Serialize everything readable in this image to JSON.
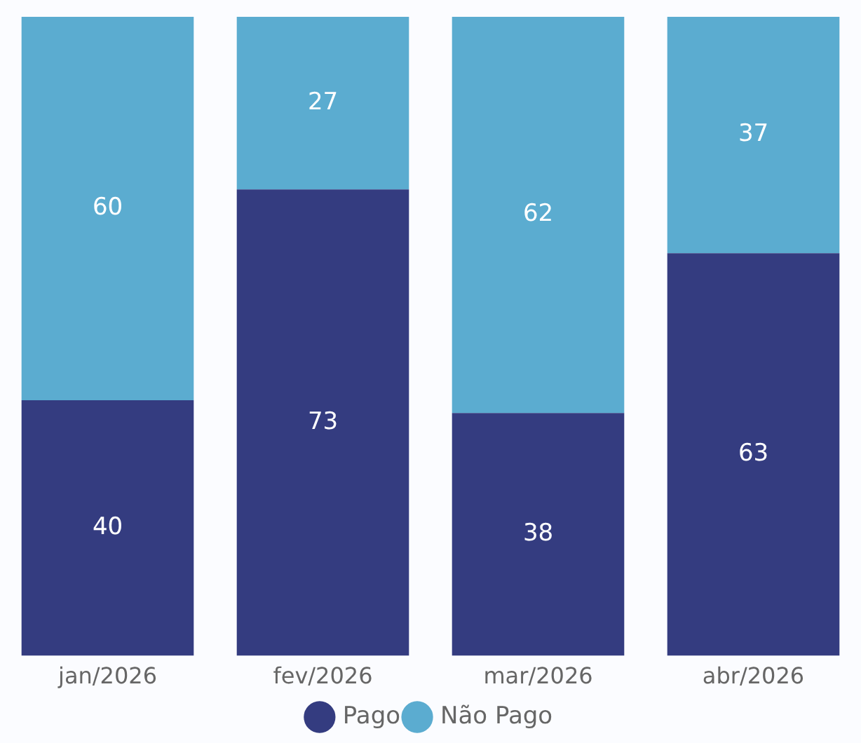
{
  "chart_data": {
    "type": "bar",
    "stacked": true,
    "categories": [
      "jan/2026",
      "fev/2026",
      "mar/2026",
      "abr/2026"
    ],
    "series": [
      {
        "name": "Pago",
        "color": "#343c80",
        "values": [
          40,
          73,
          38,
          63
        ]
      },
      {
        "name": "Não Pago",
        "color": "#5bacd0",
        "values": [
          60,
          27,
          62,
          37
        ]
      }
    ],
    "ylim": [
      0,
      100
    ],
    "tick_labels": "x",
    "grid": false,
    "legend": "bottom",
    "data_labels": true
  }
}
